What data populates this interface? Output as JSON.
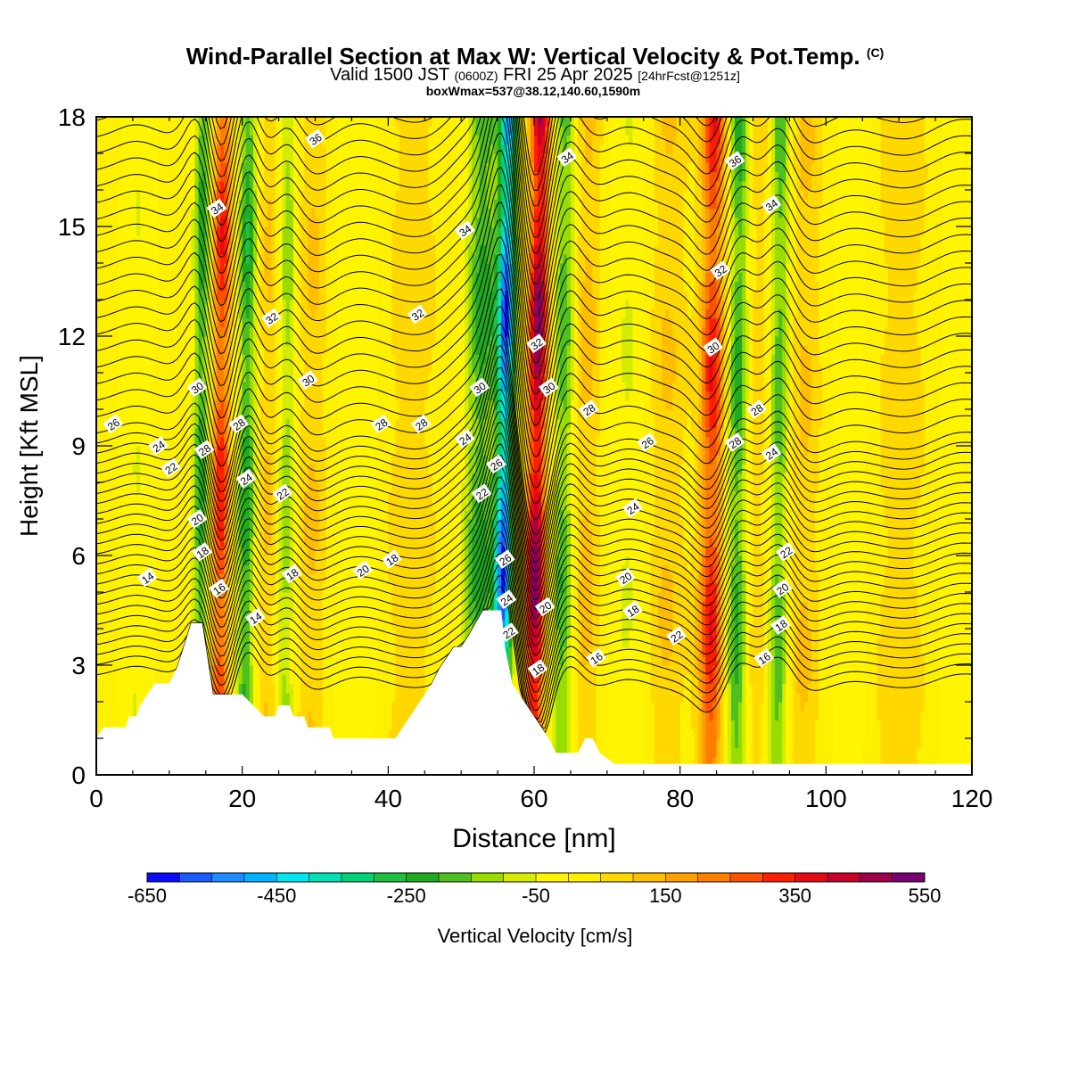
{
  "header": {
    "title": "Wind-Parallel Section at Max W: Vertical Velocity & Pot.Temp.",
    "copyright": "(C)",
    "valid_pre": "Valid 1500 JST",
    "valid_z": "(0600Z)",
    "valid_post": "FRI 25 Apr 2025",
    "valid_fcst": "[24hrFcst@1251z]",
    "boxline": "boxWmax=537@38.12,140.60,1590m"
  },
  "colors": {
    "background": "#fff500",
    "terrain": "#ffffff",
    "contour": "#000000"
  },
  "chart_data": {
    "type": "heatmap",
    "xlabel": "Distance [nm]",
    "ylabel": "Height [Kft MSL]",
    "xlim": [
      0,
      120
    ],
    "ylim": [
      0,
      18
    ],
    "x_ticks": [
      0,
      20,
      40,
      60,
      80,
      100,
      120
    ],
    "y_ticks": [
      0,
      3,
      6,
      9,
      12,
      15,
      18
    ],
    "colorbar": {
      "label": "Vertical Velocity [cm/s]",
      "tick_labels": [
        "-650",
        "-450",
        "-250",
        "-50",
        "150",
        "350",
        "550"
      ],
      "levels": [
        -650,
        -600,
        -550,
        -500,
        -450,
        -400,
        -350,
        -300,
        -250,
        -200,
        -150,
        -100,
        -50,
        0,
        50,
        100,
        150,
        200,
        250,
        300,
        350,
        400,
        450,
        500,
        550
      ],
      "colors": [
        "#0a0aff",
        "#1c5cff",
        "#1e8cff",
        "#00b4ff",
        "#00e6f0",
        "#00e0b4",
        "#00d278",
        "#20c040",
        "#20aa20",
        "#50c020",
        "#98dc00",
        "#d4ec00",
        "#fff500",
        "#fff000",
        "#ffd800",
        "#ffbe00",
        "#ffa000",
        "#ff7e00",
        "#ff5000",
        "#ff1e00",
        "#e60a14",
        "#c8002a",
        "#a0004a",
        "#780070"
      ]
    },
    "terrain_heights_kft": [
      {
        "x": 0,
        "h": 1.0
      },
      {
        "x": 1,
        "h": 1.3
      },
      {
        "x": 4,
        "h": 1.3
      },
      {
        "x": 4.5,
        "h": 1.6
      },
      {
        "x": 5.5,
        "h": 1.6
      },
      {
        "x": 6,
        "h": 1.9
      },
      {
        "x": 7,
        "h": 2.2
      },
      {
        "x": 8,
        "h": 2.5
      },
      {
        "x": 9,
        "h": 2.5
      },
      {
        "x": 10,
        "h": 2.5
      },
      {
        "x": 11,
        "h": 2.9
      },
      {
        "x": 12,
        "h": 3.5
      },
      {
        "x": 13,
        "h": 4.15
      },
      {
        "x": 14.5,
        "h": 4.15
      },
      {
        "x": 15,
        "h": 3.5
      },
      {
        "x": 16,
        "h": 2.2
      },
      {
        "x": 20,
        "h": 2.2
      },
      {
        "x": 21.5,
        "h": 1.9
      },
      {
        "x": 23,
        "h": 1.6
      },
      {
        "x": 24.5,
        "h": 1.6
      },
      {
        "x": 25,
        "h": 1.9
      },
      {
        "x": 26.5,
        "h": 1.9
      },
      {
        "x": 27,
        "h": 1.6
      },
      {
        "x": 28.5,
        "h": 1.6
      },
      {
        "x": 29,
        "h": 1.3
      },
      {
        "x": 32,
        "h": 1.3
      },
      {
        "x": 32.5,
        "h": 1.0
      },
      {
        "x": 41,
        "h": 1.0
      },
      {
        "x": 42,
        "h": 1.3
      },
      {
        "x": 43,
        "h": 1.6
      },
      {
        "x": 44,
        "h": 1.9
      },
      {
        "x": 45,
        "h": 2.2
      },
      {
        "x": 46,
        "h": 2.5
      },
      {
        "x": 47,
        "h": 2.9
      },
      {
        "x": 48,
        "h": 3.2
      },
      {
        "x": 49,
        "h": 3.5
      },
      {
        "x": 50,
        "h": 3.5
      },
      {
        "x": 51,
        "h": 3.8
      },
      {
        "x": 52,
        "h": 4.15
      },
      {
        "x": 53,
        "h": 4.5
      },
      {
        "x": 55.5,
        "h": 4.5
      },
      {
        "x": 56,
        "h": 3.5
      },
      {
        "x": 57,
        "h": 2.5
      },
      {
        "x": 58,
        "h": 2.2
      },
      {
        "x": 59,
        "h": 1.9
      },
      {
        "x": 60,
        "h": 1.6
      },
      {
        "x": 61,
        "h": 1.3
      },
      {
        "x": 62,
        "h": 1.0
      },
      {
        "x": 63,
        "h": 0.6
      },
      {
        "x": 66,
        "h": 0.6
      },
      {
        "x": 67,
        "h": 1.0
      },
      {
        "x": 68,
        "h": 1.0
      },
      {
        "x": 69,
        "h": 0.6
      },
      {
        "x": 71,
        "h": 0.3
      },
      {
        "x": 120,
        "h": 0.3
      }
    ],
    "vertical_velocity_bands": [
      {
        "x": 5.5,
        "sign": -1,
        "amp": 60,
        "width": 1.8
      },
      {
        "x": 14.3,
        "sign": -1,
        "amp": 260,
        "width": 1.1
      },
      {
        "x": 17.0,
        "sign": 1,
        "amp": 350,
        "width": 1.3
      },
      {
        "x": 20.5,
        "sign": -1,
        "amp": 270,
        "width": 1.2
      },
      {
        "x": 23.5,
        "sign": 1,
        "amp": 110,
        "width": 1.6
      },
      {
        "x": 26.0,
        "sign": -1,
        "amp": 170,
        "width": 1.2
      },
      {
        "x": 29.5,
        "sign": 1,
        "amp": 110,
        "width": 2.2
      },
      {
        "x": 36.0,
        "sign": -1,
        "amp": 60,
        "width": 3.0
      },
      {
        "x": 43.0,
        "sign": 1,
        "amp": 90,
        "width": 4.0
      },
      {
        "x": 52.5,
        "sign": -1,
        "amp": 250,
        "width": 2.2
      },
      {
        "x": 55.8,
        "sign": -1,
        "amp": 600,
        "width": 1.2
      },
      {
        "x": 60.2,
        "sign": 1,
        "amp": 520,
        "width": 1.4
      },
      {
        "x": 64.0,
        "sign": -1,
        "amp": 230,
        "width": 1.5
      },
      {
        "x": 67.0,
        "sign": 1,
        "amp": 130,
        "width": 2.2
      },
      {
        "x": 73.0,
        "sign": -1,
        "amp": 70,
        "width": 3.0
      },
      {
        "x": 78.0,
        "sign": 1,
        "amp": 110,
        "width": 3.0
      },
      {
        "x": 84.3,
        "sign": 1,
        "amp": 350,
        "width": 1.7
      },
      {
        "x": 87.8,
        "sign": -1,
        "amp": 250,
        "width": 1.4
      },
      {
        "x": 90.5,
        "sign": 1,
        "amp": 90,
        "width": 1.6
      },
      {
        "x": 93.5,
        "sign": -1,
        "amp": 220,
        "width": 1.3
      },
      {
        "x": 97.0,
        "sign": 1,
        "amp": 110,
        "width": 2.3
      },
      {
        "x": 104.0,
        "sign": -1,
        "amp": 40,
        "width": 3.0
      },
      {
        "x": 110.0,
        "sign": 1,
        "amp": 90,
        "width": 4.0
      },
      {
        "x": 117.5,
        "sign": -1,
        "amp": 50,
        "width": 2.0
      }
    ],
    "theta_isentropes": [
      14,
      16,
      18,
      20,
      22,
      24,
      26,
      28,
      30,
      32,
      34,
      36
    ],
    "contour_labels": [
      {
        "text": "36",
        "x": 30.0,
        "y": 17.4
      },
      {
        "text": "34",
        "x": 64.5,
        "y": 16.9
      },
      {
        "text": "36",
        "x": 87.5,
        "y": 16.8
      },
      {
        "text": "34",
        "x": 16.5,
        "y": 15.5
      },
      {
        "text": "34",
        "x": 92.5,
        "y": 15.6
      },
      {
        "text": "34",
        "x": 50.5,
        "y": 14.9
      },
      {
        "text": "32",
        "x": 85.5,
        "y": 13.8
      },
      {
        "text": "32",
        "x": 24.0,
        "y": 12.5
      },
      {
        "text": "32",
        "x": 44.0,
        "y": 12.6
      },
      {
        "text": "32",
        "x": 60.3,
        "y": 11.8
      },
      {
        "text": "30",
        "x": 84.5,
        "y": 11.7
      },
      {
        "text": "30",
        "x": 29.0,
        "y": 10.8
      },
      {
        "text": "30",
        "x": 13.8,
        "y": 10.6
      },
      {
        "text": "30",
        "x": 52.5,
        "y": 10.6
      },
      {
        "text": "30",
        "x": 62.0,
        "y": 10.6
      },
      {
        "text": "28",
        "x": 67.5,
        "y": 10.0
      },
      {
        "text": "28",
        "x": 90.5,
        "y": 10.0
      },
      {
        "text": "26",
        "x": 2.3,
        "y": 9.6
      },
      {
        "text": "28",
        "x": 19.5,
        "y": 9.6
      },
      {
        "text": "28",
        "x": 39.0,
        "y": 9.6
      },
      {
        "text": "28",
        "x": 44.5,
        "y": 9.6
      },
      {
        "text": "24",
        "x": 8.5,
        "y": 9.0
      },
      {
        "text": "28",
        "x": 14.8,
        "y": 8.9
      },
      {
        "text": "24",
        "x": 50.5,
        "y": 9.2
      },
      {
        "text": "26",
        "x": 75.5,
        "y": 9.1
      },
      {
        "text": "28",
        "x": 87.5,
        "y": 9.1
      },
      {
        "text": "24",
        "x": 92.5,
        "y": 8.8
      },
      {
        "text": "22",
        "x": 10.2,
        "y": 8.4
      },
      {
        "text": "26",
        "x": 54.8,
        "y": 8.5
      },
      {
        "text": "24",
        "x": 20.5,
        "y": 8.1
      },
      {
        "text": "22",
        "x": 25.5,
        "y": 7.7
      },
      {
        "text": "22",
        "x": 52.8,
        "y": 7.7
      },
      {
        "text": "24",
        "x": 73.5,
        "y": 7.3
      },
      {
        "text": "20",
        "x": 13.8,
        "y": 7.0
      },
      {
        "text": "22",
        "x": 94.5,
        "y": 6.1
      },
      {
        "text": "18",
        "x": 14.5,
        "y": 6.1
      },
      {
        "text": "26",
        "x": 56.0,
        "y": 5.9
      },
      {
        "text": "20",
        "x": 36.5,
        "y": 5.6
      },
      {
        "text": "18",
        "x": 40.5,
        "y": 5.9
      },
      {
        "text": "14",
        "x": 7.0,
        "y": 5.4
      },
      {
        "text": "18",
        "x": 26.8,
        "y": 5.5
      },
      {
        "text": "20",
        "x": 72.5,
        "y": 5.4
      },
      {
        "text": "16",
        "x": 16.8,
        "y": 5.1
      },
      {
        "text": "20",
        "x": 94.0,
        "y": 5.1
      },
      {
        "text": "24",
        "x": 56.2,
        "y": 4.8
      },
      {
        "text": "20",
        "x": 61.5,
        "y": 4.6
      },
      {
        "text": "18",
        "x": 73.5,
        "y": 4.5
      },
      {
        "text": "14",
        "x": 21.8,
        "y": 4.3
      },
      {
        "text": "18",
        "x": 93.8,
        "y": 4.1
      },
      {
        "text": "22",
        "x": 56.5,
        "y": 3.9
      },
      {
        "text": "22",
        "x": 79.5,
        "y": 3.8
      },
      {
        "text": "16",
        "x": 68.5,
        "y": 3.2
      },
      {
        "text": "16",
        "x": 91.5,
        "y": 3.2
      },
      {
        "text": "18",
        "x": 60.5,
        "y": 2.9
      }
    ]
  }
}
